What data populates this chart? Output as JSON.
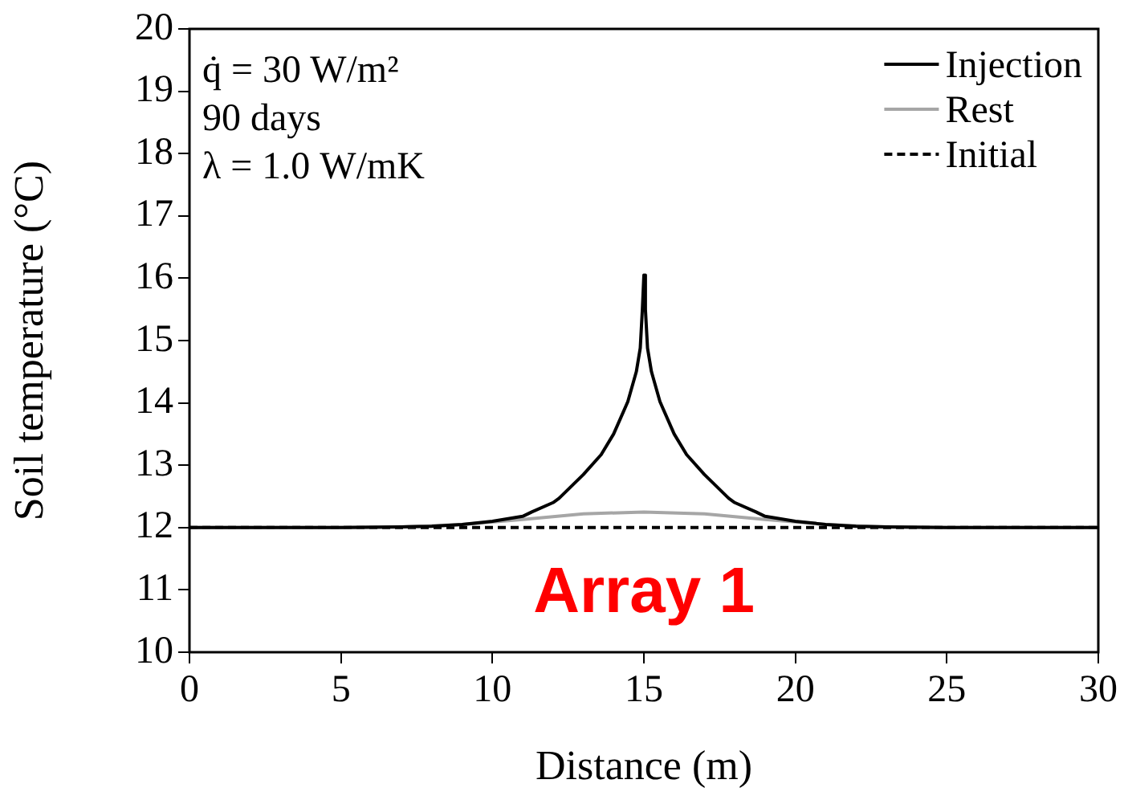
{
  "chart_data": {
    "type": "line",
    "xlabel": "Distance (m)",
    "ylabel": "Soil temperature (°C)",
    "xlim": [
      0,
      30
    ],
    "xticks": [
      0,
      5,
      10,
      15,
      20,
      25,
      30
    ],
    "ylim": [
      10,
      20
    ],
    "yticks": [
      10,
      11,
      12,
      13,
      14,
      15,
      16,
      17,
      18,
      19,
      20
    ],
    "grid": false,
    "legend": "top right",
    "marker": "none",
    "annotations": [
      "q̇ = 30 W/m²",
      "90 days",
      "λ = 1.0 W/mK",
      "Array 1"
    ],
    "series": [
      {
        "name": "Injection",
        "color": "#000000",
        "line_style": "solid",
        "x": [
          0,
          5,
          7,
          8,
          9,
          10,
          11,
          11.3,
          12,
          12.2,
          13,
          13.59,
          14,
          14.47,
          14.75,
          14.88,
          14.95,
          15,
          15.05,
          15.12,
          15.25,
          15.53,
          16,
          16.41,
          17,
          17.8,
          18,
          18.7,
          19,
          20,
          21,
          22,
          23,
          25,
          30
        ],
        "values": [
          12,
          12,
          12.01,
          12.02,
          12.05,
          12.1,
          12.18,
          12.25,
          12.4,
          12.47,
          12.85,
          13.17,
          13.5,
          14.02,
          14.5,
          14.88,
          15.5,
          16.05,
          15.5,
          14.88,
          14.5,
          14.02,
          13.5,
          13.17,
          12.85,
          12.47,
          12.4,
          12.25,
          12.18,
          12.1,
          12.05,
          12.02,
          12.01,
          12,
          12
        ]
      },
      {
        "name": "Rest",
        "color": "#a6a6a6",
        "line_style": "solid",
        "x": [
          0,
          5,
          7,
          9,
          11,
          13,
          15,
          17,
          19,
          21,
          23,
          25,
          30
        ],
        "values": [
          12,
          12,
          12.01,
          12.05,
          12.13,
          12.22,
          12.25,
          12.22,
          12.13,
          12.05,
          12.01,
          12,
          12
        ]
      },
      {
        "name": "Initial",
        "color": "#000000",
        "line_style": "dashed",
        "x": [
          0,
          30
        ],
        "values": [
          12,
          12
        ]
      }
    ]
  }
}
